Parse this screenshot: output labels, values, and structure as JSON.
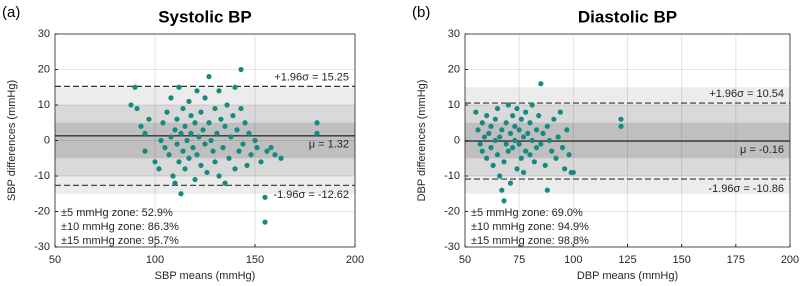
{
  "chart_data": [
    {
      "type": "scatter",
      "panel_label": "(a)",
      "title": "Systolic BP",
      "xlabel": "SBP means (mmHg)",
      "ylabel": "SBP differences (mmHg)",
      "color": "#168a82",
      "grid": true,
      "xlim": [
        50,
        200
      ],
      "xticks": [
        50,
        100,
        150,
        200
      ],
      "ylim": [
        -30,
        30
      ],
      "yticks": [
        -30,
        -20,
        -10,
        0,
        10,
        20,
        30
      ],
      "zones": [
        15,
        10,
        5
      ],
      "zone_colors": [
        "#ececec",
        "#d9d9d9",
        "#bfbfbf"
      ],
      "zone_stats": [
        "±5 mmHg zone: 52.9%",
        "±10 mmHg zone: 86.3%",
        "±15 mmHg zone: 95.7%"
      ],
      "mean_line": {
        "value": 1.32,
        "label": "μ = 1.32"
      },
      "upper_limit": {
        "value": 15.25,
        "label": "+1.96σ = 15.25"
      },
      "lower_limit": {
        "value": -12.62,
        "label": "-1.96σ = -12.62"
      },
      "x": [
        88,
        90,
        91,
        93,
        95,
        95,
        97,
        100,
        102,
        103,
        104,
        105,
        106,
        107,
        108,
        108,
        109,
        110,
        110,
        111,
        111,
        112,
        112,
        113,
        113,
        114,
        114,
        115,
        115,
        116,
        117,
        117,
        118,
        118,
        119,
        120,
        120,
        121,
        121,
        122,
        123,
        123,
        124,
        125,
        125,
        126,
        127,
        127,
        128,
        129,
        130,
        130,
        131,
        132,
        132,
        133,
        134,
        135,
        135,
        136,
        137,
        138,
        139,
        140,
        140,
        141,
        142,
        143,
        143,
        144,
        145,
        146,
        147,
        148,
        150,
        151,
        153,
        155,
        155,
        156,
        158,
        160,
        163,
        181,
        181
      ],
      "values": [
        10,
        15,
        9,
        4,
        -3,
        2,
        6,
        -6,
        -8,
        0,
        5,
        -2,
        8,
        -4,
        12,
        1,
        -10,
        -12,
        3,
        6,
        -1,
        15,
        -6,
        -15,
        2,
        9,
        -3,
        4,
        -8,
        0,
        11,
        -5,
        7,
        2,
        -2,
        -11,
        5,
        14,
        -4,
        1,
        8,
        -7,
        3,
        -1,
        12,
        -9,
        5,
        18,
        0,
        -3,
        9,
        -6,
        2,
        14,
        -10,
        6,
        -2,
        4,
        -12,
        10,
        -5,
        1,
        7,
        -8,
        15,
        3,
        -3,
        20,
        9,
        -1,
        5,
        -7,
        2,
        -4,
        0,
        -2,
        -6,
        -16,
        -23,
        -3,
        -2,
        -4,
        -5,
        5,
        2
      ]
    },
    {
      "type": "scatter",
      "panel_label": "(b)",
      "title": "Diastolic BP",
      "xlabel": "DBP means (mmHg)",
      "ylabel": "DBP differences (mmHg)",
      "color": "#168a82",
      "grid": true,
      "xlim": [
        50,
        200
      ],
      "xticks": [
        50,
        75,
        100,
        125,
        150,
        175,
        200
      ],
      "ylim": [
        -30,
        30
      ],
      "yticks": [
        -30,
        -20,
        -10,
        0,
        10,
        20,
        30
      ],
      "zones": [
        15,
        10,
        5
      ],
      "zone_colors": [
        "#ececec",
        "#d9d9d9",
        "#bfbfbf"
      ],
      "zone_stats": [
        "±5 mmHg zone: 69.0%",
        "±10 mmHg zone: 94.9%",
        "±15 mmHg zone: 98.8%"
      ],
      "mean_line": {
        "value": -0.16,
        "label": "μ = -0.16"
      },
      "upper_limit": {
        "value": 10.54,
        "label": "+1.96σ = 10.54"
      },
      "lower_limit": {
        "value": -10.86,
        "label": "-1.96σ = -10.86"
      },
      "x": [
        55,
        56,
        57,
        58,
        58,
        59,
        60,
        60,
        61,
        62,
        62,
        63,
        64,
        64,
        65,
        65,
        66,
        66,
        67,
        67,
        68,
        68,
        69,
        69,
        70,
        70,
        71,
        71,
        72,
        72,
        73,
        73,
        74,
        74,
        75,
        75,
        76,
        76,
        77,
        77,
        78,
        78,
        79,
        80,
        80,
        81,
        81,
        82,
        83,
        83,
        84,
        85,
        85,
        86,
        87,
        88,
        88,
        89,
        90,
        91,
        92,
        93,
        94,
        95,
        96,
        97,
        98,
        99,
        100,
        122,
        122
      ],
      "values": [
        8,
        3,
        -1,
        5,
        -3,
        1,
        -5,
        7,
        2,
        -2,
        4,
        -7,
        0,
        6,
        -4,
        9,
        1,
        -10,
        -14,
        3,
        -17,
        -6,
        5,
        -1,
        10,
        -3,
        2,
        -12,
        7,
        -2,
        0,
        4,
        -8,
        9,
        -1,
        3,
        6,
        -5,
        1,
        -9,
        8,
        -3,
        2,
        5,
        -4,
        0,
        10,
        -6,
        3,
        -2,
        7,
        16,
        -1,
        2,
        -7,
        4,
        -14,
        0,
        -3,
        6,
        -5,
        1,
        8,
        -2,
        -8,
        3,
        -4,
        -9,
        -9,
        6,
        4
      ]
    }
  ]
}
